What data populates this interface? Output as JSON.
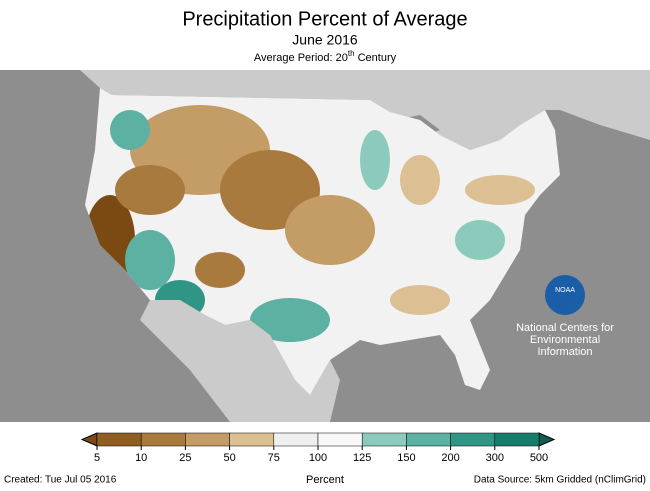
{
  "header": {
    "title": "Precipitation Percent of Average",
    "subtitle": "June 2016",
    "period_prefix": "Average Period: 20",
    "period_sup": "th",
    "period_suffix": " Century"
  },
  "logo": {
    "name": "NOAA",
    "lines": [
      "National Centers for",
      "Environmental",
      "Information"
    ]
  },
  "legend": {
    "title": "Percent",
    "ticks": [
      5,
      10,
      25,
      50,
      75,
      100,
      125,
      150,
      200,
      300,
      500
    ],
    "colors": [
      "#7a4a12",
      "#8f5e22",
      "#a87a3e",
      "#c49c66",
      "#dcbf93",
      "#efefef",
      "#f8f8f8",
      "#8ccabd",
      "#5cb1a2",
      "#2f9585",
      "#167c6c",
      "#0d5f52"
    ]
  },
  "footer": {
    "created": "Created: Tue Jul 05 2016",
    "source": "Data Source: 5km Gridded (nClimGrid)"
  }
}
